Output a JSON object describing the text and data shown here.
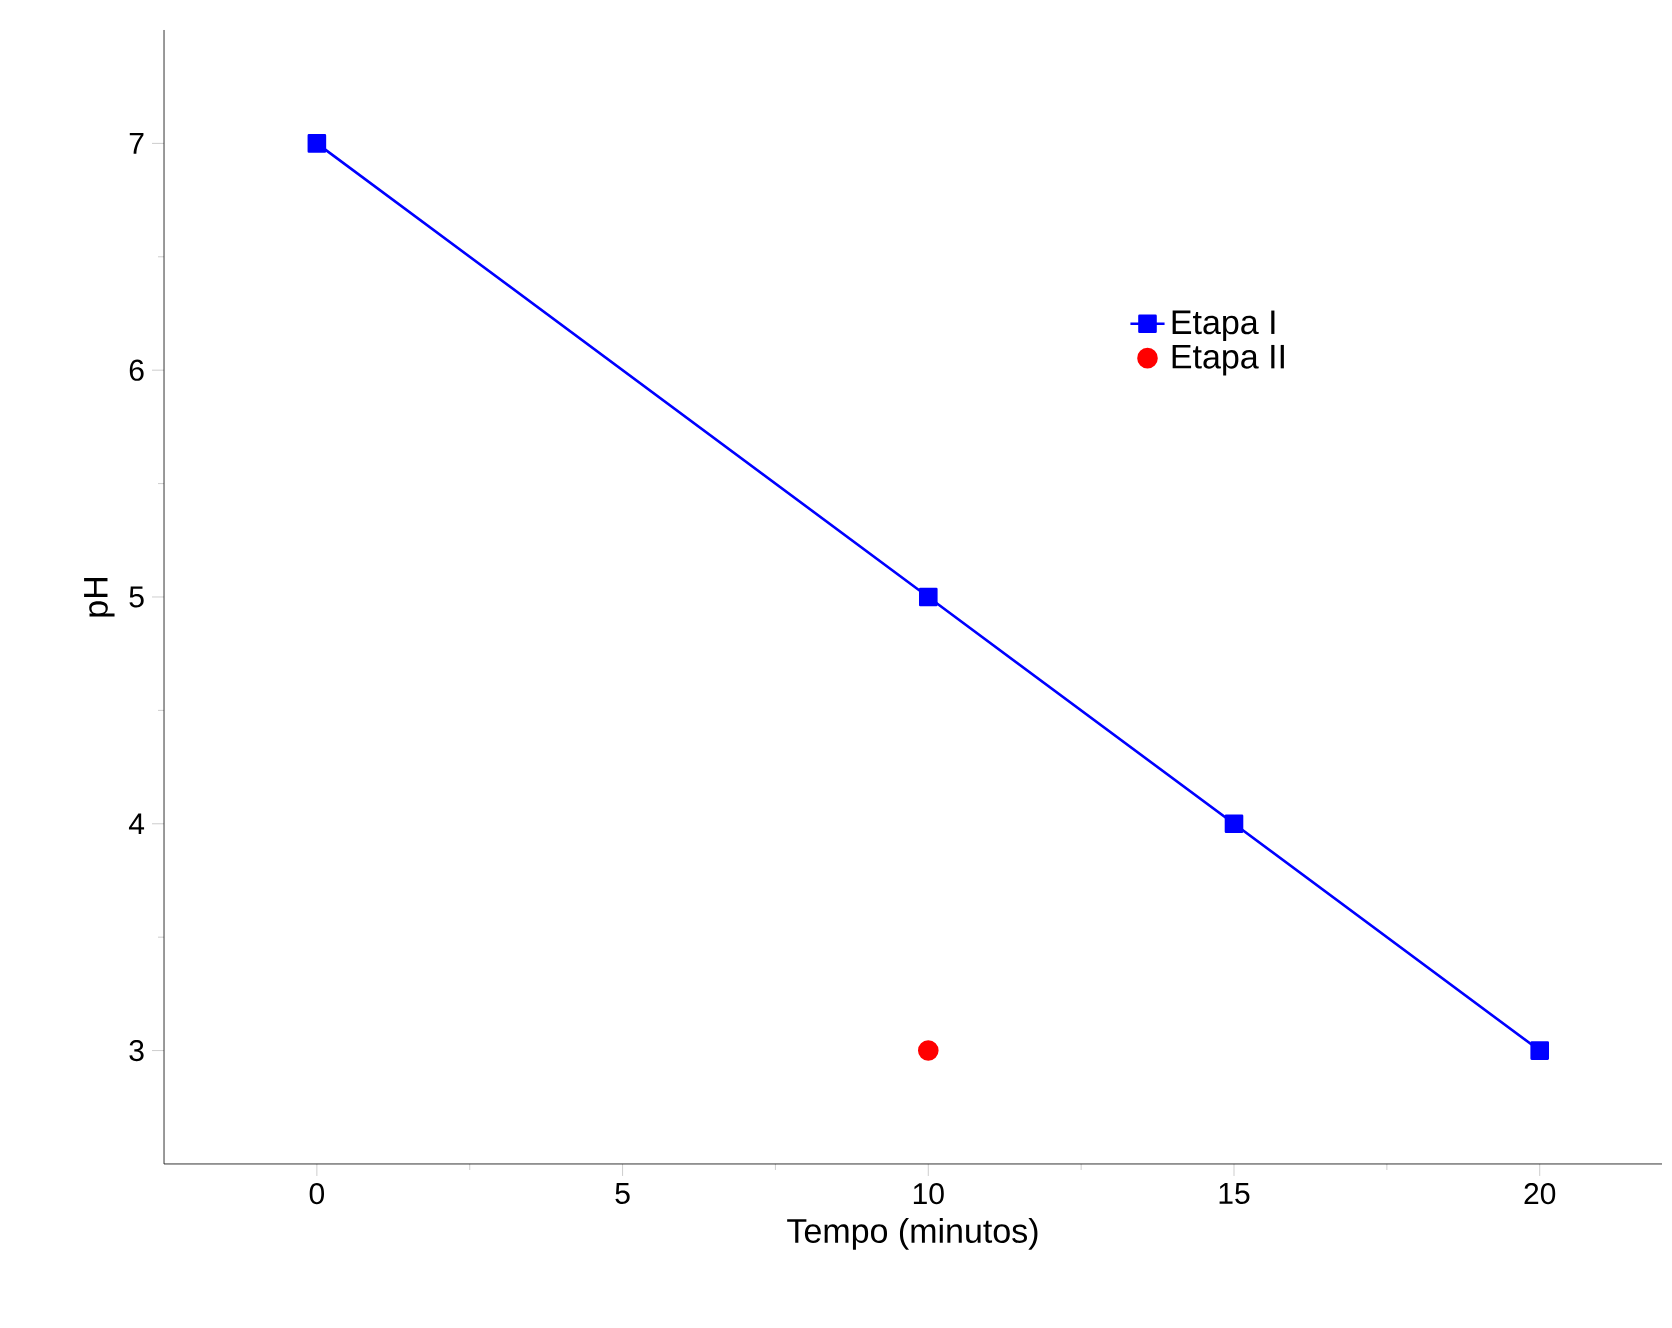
{
  "chart_data": {
    "type": "line",
    "xlabel": "Tempo (minutos)",
    "ylabel": "pH",
    "xlim": [
      -2.5,
      22
    ],
    "ylim": [
      2.5,
      7.5
    ],
    "xticks": [
      0,
      5,
      10,
      15,
      20
    ],
    "yticks": [
      3,
      4,
      5,
      6,
      7
    ],
    "legend": "top right",
    "grid": false,
    "series": [
      {
        "name": "Etapa I",
        "marker": "square",
        "color": "#0000ff",
        "x": [
          0,
          10,
          15,
          20
        ],
        "values": [
          7,
          5,
          4,
          3
        ]
      },
      {
        "name": "Etapa II",
        "type": "scatter",
        "marker": "circle",
        "color": "#ff0000",
        "x": [
          10
        ],
        "values": [
          3
        ]
      }
    ]
  }
}
